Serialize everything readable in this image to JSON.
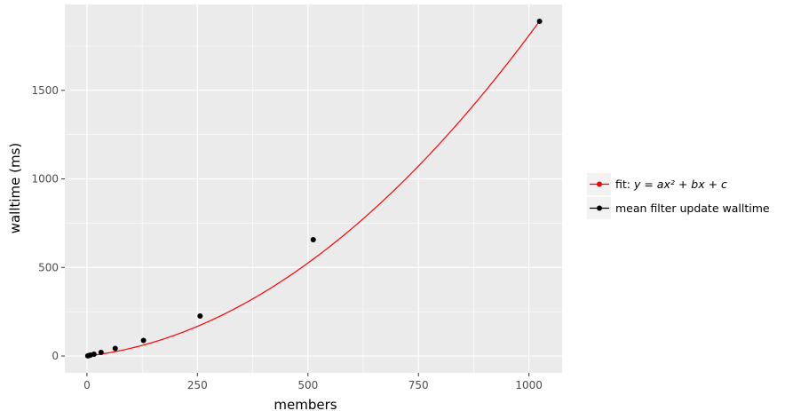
{
  "chart_data": {
    "type": "scatter",
    "title": "",
    "xlabel": "members",
    "ylabel": "walltime (ms)",
    "xlim": [
      -50,
      1075
    ],
    "ylim": [
      -95,
      1985
    ],
    "x_ticks": [
      0,
      250,
      500,
      750,
      1000
    ],
    "x_tick_labels": [
      "0",
      "250",
      "500",
      "750",
      "1000"
    ],
    "y_ticks": [
      0,
      500,
      1000,
      1500
    ],
    "y_tick_labels": [
      "0",
      "500",
      "1000",
      "1500"
    ],
    "grid": true,
    "legend_position": "right",
    "series": [
      {
        "name": "mean filter update walltime",
        "kind": "points",
        "color": "#000000",
        "x": [
          2,
          4,
          8,
          16,
          32,
          64,
          128,
          256,
          512,
          1024
        ],
        "y": [
          1,
          2,
          5,
          10,
          20,
          43,
          88,
          226,
          657,
          1890
        ]
      },
      {
        "name": "fit: y = ax² + bx + c",
        "kind": "fit-curve",
        "color": "#ff0000",
        "coefficients": {
          "a": 0.00152,
          "b": 0.29,
          "c": 0
        },
        "x_range": [
          0,
          1024
        ]
      }
    ],
    "legend": [
      {
        "label_prefix": "fit: ",
        "label_formula": "y = ax² + bx + c",
        "color": "#ff0000"
      },
      {
        "label_prefix": "",
        "label_formula": "mean filter update walltime",
        "color": "#000000"
      }
    ],
    "colors": {
      "panel_background": "#ebebeb",
      "grid_major": "#ffffff",
      "points": "#000000",
      "fit_line": "#ff0000"
    }
  }
}
